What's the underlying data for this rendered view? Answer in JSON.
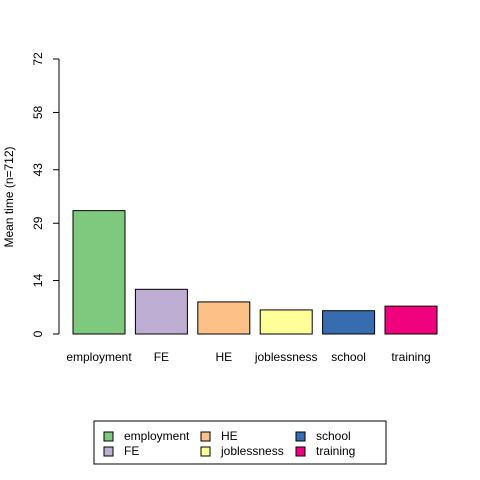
{
  "chart_data": {
    "type": "bar",
    "categories": [
      "employment",
      "FE",
      "HE",
      "joblessness",
      "school",
      "training"
    ],
    "values": [
      32.3,
      11.7,
      8.4,
      6.3,
      6.1,
      7.3
    ],
    "colors": [
      "#7fc97f",
      "#beaed4",
      "#fdc086",
      "#ffff99",
      "#386cb0",
      "#f0027f"
    ],
    "ylabel": "Mean time (n=712)",
    "xlabel": "",
    "ylim": [
      0,
      72
    ],
    "yticks": [
      0,
      14,
      29,
      43,
      58,
      72
    ],
    "grid": false,
    "legend": {
      "position": "bottom",
      "entries": [
        "employment",
        "FE",
        "HE",
        "joblessness",
        "school",
        "training"
      ]
    }
  }
}
